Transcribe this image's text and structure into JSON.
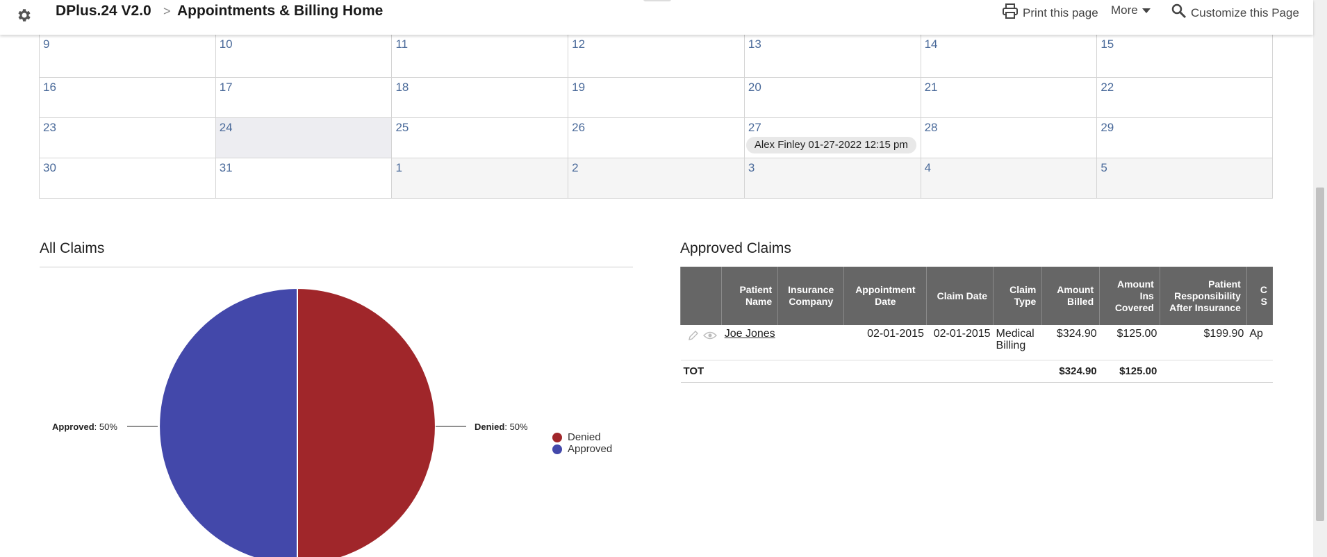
{
  "header": {
    "app_name": "DPlus.24 V2.0",
    "separator": ">",
    "page_title": "Appointments & Billing Home",
    "print_label": "Print this page",
    "more_label": "More",
    "customize_label": "Customize this Page"
  },
  "calendar": {
    "weeks": [
      [
        {
          "day": "9"
        },
        {
          "day": "10"
        },
        {
          "day": "11"
        },
        {
          "day": "12"
        },
        {
          "day": "13"
        },
        {
          "day": "14"
        },
        {
          "day": "15"
        }
      ],
      [
        {
          "day": "16"
        },
        {
          "day": "17"
        },
        {
          "day": "18"
        },
        {
          "day": "19"
        },
        {
          "day": "20"
        },
        {
          "day": "21"
        },
        {
          "day": "22"
        }
      ],
      [
        {
          "day": "23"
        },
        {
          "day": "24",
          "today": true
        },
        {
          "day": "25"
        },
        {
          "day": "26"
        },
        {
          "day": "27",
          "event": "Alex Finley 01-27-2022 12:15 pm"
        },
        {
          "day": "28"
        },
        {
          "day": "29"
        }
      ],
      [
        {
          "day": "30"
        },
        {
          "day": "31"
        },
        {
          "day": "1",
          "other": true
        },
        {
          "day": "2",
          "other": true
        },
        {
          "day": "3",
          "other": true
        },
        {
          "day": "4",
          "other": true
        },
        {
          "day": "5",
          "other": true
        }
      ]
    ]
  },
  "all_claims": {
    "title": "All Claims",
    "label_approved_name": "Approved",
    "label_approved_value": ": 50%",
    "label_denied_name": "Denied",
    "label_denied_value": ": 50%"
  },
  "chart_data": {
    "type": "pie",
    "slices": [
      {
        "name": "Denied",
        "value": 50,
        "color": "#a0262a"
      },
      {
        "name": "Approved",
        "value": 50,
        "color": "#4348aa"
      }
    ],
    "legend": [
      "Denied",
      "Approved"
    ],
    "legend_position": "right"
  },
  "approved_claims": {
    "title": "Approved Claims",
    "columns": [
      "",
      "Patient Name",
      "Insurance Company",
      "Appointment Date",
      "Claim Date",
      "Claim Type",
      "Amount Billed",
      "Amount Ins Covered",
      "Patient Responsibility After Insurance",
      "C S"
    ],
    "rows": [
      {
        "patient": "Joe Jones",
        "insurance": "",
        "appointment_date": "02-01-2015",
        "claim_date": "02-01-2015",
        "claim_type": "Medical Billing",
        "amount_billed": "$324.90",
        "ins_covered": "$125.00",
        "patient_resp": "$199.90",
        "status": "Ap"
      }
    ],
    "totals": {
      "label": "TOT",
      "amount_billed": "$324.90",
      "ins_covered": "$125.00"
    }
  },
  "colors": {
    "denied": "#a0262a",
    "approved": "#4348aa",
    "table_header": "#666666",
    "day_number": "#4a6a9a"
  },
  "icons": [
    "gear-icon",
    "printer-icon",
    "caret-down-icon",
    "customize-search-icon",
    "pencil-icon",
    "eye-icon"
  ]
}
